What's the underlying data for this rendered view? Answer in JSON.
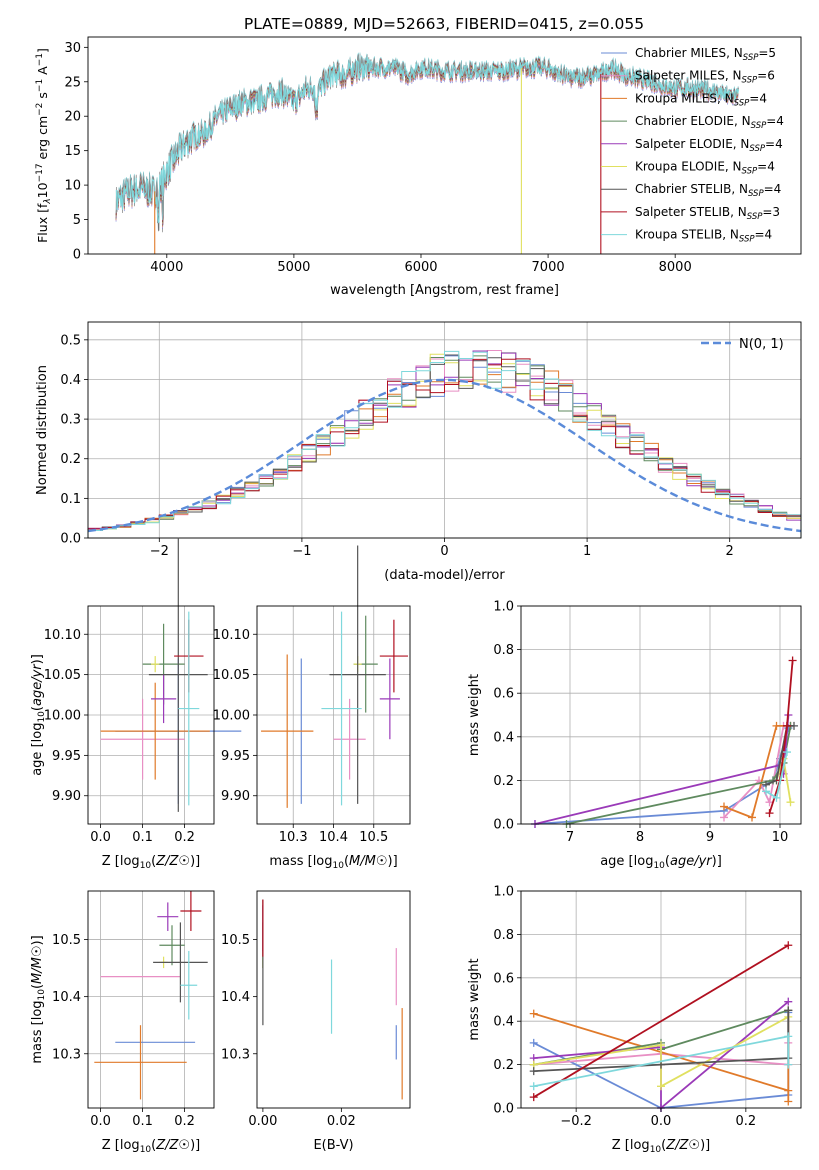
{
  "figure_title": "PLATE=0889, MJD=52663, FIBERID=0415, z=0.055",
  "colors": {
    "Chabrier MILES": "#6a8bd6",
    "Salpeter MILES": "#e88fc4",
    "Kroupa MILES": "#e07a2a",
    "Chabrier ELODIE": "#5f8a5f",
    "Salpeter ELODIE": "#9a3ab8",
    "Kroupa ELODIE": "#e0e060",
    "Chabrier STELIB": "#555555",
    "Salpeter STELIB": "#b01020",
    "Kroupa STELIB": "#7fd8dc",
    "normal": "#5b8bd9"
  },
  "chart_data": [
    {
      "id": "spectrum",
      "type": "line",
      "title": "PLATE=0889, MJD=52663, FIBERID=0415, z=0.055",
      "xlabel": "wavelength [Angstrom, rest frame]",
      "ylabel_parts": [
        "Flux [f",
        "λ",
        "10",
        "−17",
        " erg cm",
        "−2",
        " s",
        "−1",
        " A",
        "−1",
        "]"
      ],
      "xlim": [
        3380,
        8990
      ],
      "ylim": [
        0,
        31.5
      ],
      "xticks": [
        4000,
        5000,
        6000,
        7000,
        8000
      ],
      "yticks": [
        0,
        5,
        10,
        15,
        20,
        25,
        30
      ],
      "grid": false,
      "legend_loc": "right",
      "legend": [
        {
          "model": "Chabrier MILES",
          "n": 5
        },
        {
          "model": "Salpeter MILES",
          "n": 6
        },
        {
          "model": "Kroupa MILES",
          "n": 4
        },
        {
          "model": "Chabrier ELODIE",
          "n": 4
        },
        {
          "model": "Salpeter ELODIE",
          "n": 4
        },
        {
          "model": "Kroupa ELODIE",
          "n": 4
        },
        {
          "model": "Chabrier STELIB",
          "n": 4
        },
        {
          "model": "Salpeter STELIB",
          "n": 3
        },
        {
          "model": "Kroupa STELIB",
          "n": 4
        }
      ],
      "continuum": [
        [
          3600,
          7.5
        ],
        [
          3700,
          9
        ],
        [
          3800,
          9.5
        ],
        [
          3900,
          9
        ],
        [
          3950,
          10
        ],
        [
          4000,
          12
        ],
        [
          4100,
          15
        ],
        [
          4200,
          17
        ],
        [
          4300,
          17.5
        ],
        [
          4400,
          20
        ],
        [
          4500,
          21
        ],
        [
          4600,
          22
        ],
        [
          4700,
          22
        ],
        [
          4800,
          23
        ],
        [
          4900,
          23.5
        ],
        [
          5000,
          22
        ],
        [
          5100,
          24
        ],
        [
          5200,
          24
        ],
        [
          5300,
          26
        ],
        [
          5400,
          26
        ],
        [
          5500,
          27
        ],
        [
          5600,
          27
        ],
        [
          5700,
          27
        ],
        [
          5800,
          27
        ],
        [
          5900,
          26
        ],
        [
          6000,
          27
        ],
        [
          6200,
          26.5
        ],
        [
          6400,
          26.5
        ],
        [
          6600,
          26.5
        ],
        [
          6800,
          27
        ],
        [
          7000,
          27
        ],
        [
          7100,
          26
        ],
        [
          7200,
          25.5
        ],
        [
          7400,
          26
        ],
        [
          7500,
          27
        ],
        [
          7600,
          26
        ],
        [
          7800,
          25
        ],
        [
          8000,
          24
        ],
        [
          8200,
          24
        ],
        [
          8400,
          23
        ],
        [
          8500,
          23
        ]
      ],
      "spikes": [
        {
          "x": 3905,
          "ymin": 0,
          "series": "Kroupa MILES"
        },
        {
          "x": 6790,
          "ymin": 0,
          "series": "Kroupa ELODIE"
        },
        {
          "x": 7415,
          "ymin": 0,
          "series": "Salpeter STELIB"
        }
      ]
    },
    {
      "id": "residuals",
      "type": "step",
      "xlabel": "(data-model)/error",
      "ylabel": "Normed distribution",
      "xlim": [
        -2.5,
        2.5
      ],
      "ylim": [
        0,
        0.545
      ],
      "xticks": [
        -2,
        -1,
        0,
        1,
        2
      ],
      "yticks": [
        0.0,
        0.1,
        0.2,
        0.3,
        0.4,
        0.5
      ],
      "grid": true,
      "legend": "N(0, 1)",
      "legend_loc": "upper right",
      "bin_width": 0.1,
      "base_density": [
        0.02,
        0.024,
        0.028,
        0.034,
        0.041,
        0.048,
        0.057,
        0.067,
        0.078,
        0.091,
        0.105,
        0.12,
        0.137,
        0.155,
        0.175,
        0.196,
        0.218,
        0.241,
        0.264,
        0.287,
        0.309,
        0.33,
        0.349,
        0.366,
        0.38,
        0.39,
        0.397,
        0.399,
        0.397,
        0.39,
        0.38,
        0.366,
        0.349,
        0.33,
        0.309,
        0.287,
        0.264,
        0.241,
        0.218,
        0.196,
        0.175,
        0.155,
        0.137,
        0.12,
        0.105,
        0.091,
        0.078,
        0.067,
        0.057,
        0.048
      ]
    },
    {
      "id": "z-age",
      "type": "errorbar",
      "xlabel": "Z [log10(Z/Z☉)]",
      "ylabel": "age  [log10(age/yr)]",
      "xlim": [
        -0.03,
        0.27
      ],
      "ylim": [
        9.865,
        10.135
      ],
      "xticks": [
        0.0,
        0.1,
        0.2
      ],
      "yticks": [
        9.9,
        9.95,
        10.0,
        10.05,
        10.1
      ],
      "grid": true,
      "points": [
        {
          "series": "Chabrier MILES",
          "x": 0.185,
          "xerr": 0.15,
          "y": 9.98,
          "yerr": 0.09
        },
        {
          "series": "Salpeter MILES",
          "x": 0.1,
          "xerr": 0.1,
          "y": 9.97,
          "yerr": 0.05
        },
        {
          "series": "Kroupa MILES",
          "x": 0.13,
          "xerr": 0.13,
          "y": 9.98,
          "yerr": 0.06
        },
        {
          "series": "Chabrier ELODIE",
          "x": 0.15,
          "xerr": 0.05,
          "y": 10.063,
          "yerr": 0.05
        },
        {
          "series": "Salpeter ELODIE",
          "x": 0.15,
          "xerr": 0.03,
          "y": 10.02,
          "yerr": 0.03
        },
        {
          "series": "Kroupa ELODIE",
          "x": 0.13,
          "xerr": 0.01,
          "y": 10.063,
          "yerr": 0.01
        },
        {
          "series": "Chabrier STELIB",
          "x": 0.185,
          "xerr": 0.07,
          "y": 10.05,
          "yerr": 0.17
        },
        {
          "series": "Salpeter STELIB",
          "x": 0.21,
          "xerr": 0.035,
          "y": 10.073,
          "yerr": 0.045
        },
        {
          "series": "Kroupa STELIB",
          "x": 0.21,
          "xerr": 0.025,
          "y": 10.008,
          "yerr": 0.12
        }
      ]
    },
    {
      "id": "mass-age",
      "type": "errorbar",
      "xlabel": "mass [log10(M/M☉)]",
      "ylabel": "",
      "xlim": [
        10.21,
        10.59
      ],
      "ylim": [
        9.865,
        10.135
      ],
      "xticks": [
        10.3,
        10.4,
        10.5
      ],
      "yticks": [
        9.9,
        9.95,
        10.0,
        10.05,
        10.1
      ],
      "grid": true,
      "points": [
        {
          "series": "Chabrier MILES",
          "x": 10.32,
          "xerr": 0.0,
          "y": 9.98,
          "yerr": 0.09
        },
        {
          "series": "Salpeter MILES",
          "x": 10.44,
          "xerr": 0.04,
          "y": 9.97,
          "yerr": 0.05
        },
        {
          "series": "Kroupa MILES",
          "x": 10.285,
          "xerr": 0.065,
          "y": 9.98,
          "yerr": 0.095
        },
        {
          "series": "Chabrier ELODIE",
          "x": 10.48,
          "xerr": 0.03,
          "y": 10.063,
          "yerr": 0.06
        },
        {
          "series": "Salpeter ELODIE",
          "x": 10.54,
          "xerr": 0.025,
          "y": 10.02,
          "yerr": 0.05
        },
        {
          "series": "Kroupa ELODIE",
          "x": 10.46,
          "xerr": 0.01,
          "y": 10.063,
          "yerr": 0.01
        },
        {
          "series": "Chabrier STELIB",
          "x": 10.46,
          "xerr": 0.07,
          "y": 10.05,
          "yerr": 0.16
        },
        {
          "series": "Salpeter STELIB",
          "x": 10.55,
          "xerr": 0.035,
          "y": 10.073,
          "yerr": 0.045
        },
        {
          "series": "Kroupa STELIB",
          "x": 10.42,
          "xerr": 0.05,
          "y": 10.008,
          "yerr": 0.12
        }
      ]
    },
    {
      "id": "age-weight",
      "type": "line",
      "xlabel": "age  [log10(age/yr)]",
      "ylabel": "mass weight",
      "xlim": [
        6.3,
        10.3
      ],
      "ylim": [
        0,
        1.0
      ],
      "xticks": [
        7,
        8,
        9,
        10
      ],
      "yticks": [
        0.0,
        0.2,
        0.4,
        0.6,
        0.8,
        1.0
      ],
      "grid": true,
      "series": [
        {
          "name": "Chabrier MILES",
          "x": [
            6.5,
            9.2,
            9.9,
            10.0,
            10.12
          ],
          "y": [
            0.0,
            0.06,
            0.2,
            0.3,
            0.44
          ]
        },
        {
          "name": "Salpeter MILES",
          "x": [
            9.2,
            9.7,
            9.85,
            10.05
          ],
          "y": [
            0.03,
            0.2,
            0.1,
            0.45
          ]
        },
        {
          "name": "Kroupa MILES",
          "x": [
            9.2,
            9.6,
            9.95,
            10.15
          ],
          "y": [
            0.08,
            0.03,
            0.45,
            0.45
          ]
        },
        {
          "name": "Chabrier ELODIE",
          "x": [
            6.95,
            9.9,
            10.05,
            10.15
          ],
          "y": [
            0.0,
            0.2,
            0.28,
            0.45
          ]
        },
        {
          "name": "Salpeter ELODIE",
          "x": [
            6.5,
            10.0,
            10.05,
            10.12
          ],
          "y": [
            0.0,
            0.27,
            0.23,
            0.5
          ]
        },
        {
          "name": "Kroupa ELODIE",
          "x": [
            9.95,
            10.05,
            10.15
          ],
          "y": [
            0.2,
            0.3,
            0.1
          ]
        },
        {
          "name": "Chabrier STELIB",
          "x": [
            9.8,
            9.95,
            10.1,
            10.2
          ],
          "y": [
            0.18,
            0.2,
            0.45,
            0.45
          ]
        },
        {
          "name": "Salpeter STELIB",
          "x": [
            9.85,
            10.0,
            10.1,
            10.18
          ],
          "y": [
            0.05,
            0.2,
            0.45,
            0.75
          ]
        },
        {
          "name": "Kroupa STELIB",
          "x": [
            9.8,
            9.95,
            10.1
          ],
          "y": [
            0.15,
            0.12,
            0.33
          ]
        }
      ]
    },
    {
      "id": "z-mass",
      "type": "errorbar",
      "xlabel": "Z [log10(Z/Z☉)]",
      "ylabel": "mass [log10(M/M☉)]",
      "xlim": [
        -0.03,
        0.27
      ],
      "ylim": [
        10.205,
        10.585
      ],
      "xticks": [
        0.0,
        0.1,
        0.2
      ],
      "yticks": [
        10.3,
        10.4,
        10.5
      ],
      "grid": true,
      "points": [
        {
          "series": "Chabrier MILES",
          "x": 0.13,
          "xerr": 0.095,
          "y": 10.32,
          "yerr": 0.0
        },
        {
          "series": "Salpeter MILES",
          "x": 0.095,
          "xerr": 0.095,
          "y": 10.435,
          "yerr": 0.0
        },
        {
          "series": "Kroupa MILES",
          "x": 0.095,
          "xerr": 0.11,
          "y": 10.285,
          "yerr": 0.065
        },
        {
          "series": "Chabrier ELODIE",
          "x": 0.17,
          "xerr": 0.03,
          "y": 10.49,
          "yerr": 0.035
        },
        {
          "series": "Salpeter ELODIE",
          "x": 0.16,
          "xerr": 0.025,
          "y": 10.54,
          "yerr": 0.025
        },
        {
          "series": "Kroupa ELODIE",
          "x": 0.15,
          "xerr": 0.01,
          "y": 10.46,
          "yerr": 0.01
        },
        {
          "series": "Chabrier STELIB",
          "x": 0.19,
          "xerr": 0.065,
          "y": 10.46,
          "yerr": 0.07
        },
        {
          "series": "Salpeter STELIB",
          "x": 0.215,
          "xerr": 0.025,
          "y": 10.55,
          "yerr": 0.035
        },
        {
          "series": "Kroupa STELIB",
          "x": 0.21,
          "xerr": 0.02,
          "y": 10.42,
          "yerr": 0.06
        }
      ]
    },
    {
      "id": "ebv-mass",
      "type": "errorbar",
      "xlabel": "E(B-V)",
      "ylabel": "",
      "xlim": [
        -0.0015,
        0.0375
      ],
      "ylim": [
        10.205,
        10.585
      ],
      "xticks": [
        0.0,
        0.02
      ],
      "yticks": [
        10.3,
        10.4,
        10.5
      ],
      "grid": false,
      "points": [
        {
          "series": "Chabrier MILES",
          "x": 0.034,
          "xerr": 0,
          "y": 10.32,
          "yerr": 0.03
        },
        {
          "series": "Salpeter MILES",
          "x": 0.034,
          "xerr": 0,
          "y": 10.435,
          "yerr": 0.05
        },
        {
          "series": "Kroupa MILES",
          "x": 0.0355,
          "xerr": 0,
          "y": 10.3,
          "yerr": 0.08
        },
        {
          "series": "Chabrier ELODIE",
          "x": 0.0,
          "xerr": 0,
          "y": 10.49,
          "yerr": 0.04
        },
        {
          "series": "Salpeter ELODIE",
          "x": 0.0,
          "xerr": 0,
          "y": 10.52,
          "yerr": 0.04
        },
        {
          "series": "Kroupa ELODIE",
          "x": 0.0,
          "xerr": 0,
          "y": 10.46,
          "yerr": 0.01
        },
        {
          "series": "Chabrier STELIB",
          "x": 0.0,
          "xerr": 0,
          "y": 10.46,
          "yerr": 0.11
        },
        {
          "series": "Salpeter STELIB",
          "x": 0.0,
          "xerr": 0,
          "y": 10.52,
          "yerr": 0.05
        },
        {
          "series": "Kroupa STELIB",
          "x": 0.0175,
          "xerr": 0,
          "y": 10.4,
          "yerr": 0.065
        }
      ]
    },
    {
      "id": "z-weight",
      "type": "line",
      "xlabel": "Z [log10(Z/Z☉)]",
      "ylabel": "mass weight",
      "xlim": [
        -0.33,
        0.33
      ],
      "ylim": [
        0,
        1.0
      ],
      "xticks": [
        -0.2,
        0.0,
        0.2
      ],
      "yticks": [
        0.0,
        0.2,
        0.4,
        0.6,
        0.8,
        1.0
      ],
      "grid": true,
      "series": [
        {
          "name": "Chabrier MILES",
          "x": [
            -0.3,
            0.0,
            0.3,
            0.3
          ],
          "y": [
            0.3,
            0.0,
            0.06,
            0.44
          ]
        },
        {
          "name": "Salpeter MILES",
          "x": [
            -0.3,
            0.0,
            0.3,
            0.3
          ],
          "y": [
            0.2,
            0.25,
            0.2,
            0.3
          ]
        },
        {
          "name": "Kroupa MILES",
          "x": [
            -0.3,
            0.3,
            0.3,
            0.3
          ],
          "y": [
            0.435,
            0.08,
            0.03,
            0.45
          ]
        },
        {
          "name": "Chabrier ELODIE",
          "x": [
            -0.3,
            0.0,
            0.0,
            0.3
          ],
          "y": [
            0.2,
            0.3,
            0.27,
            0.45
          ]
        },
        {
          "name": "Salpeter ELODIE",
          "x": [
            -0.3,
            0.0,
            0.0,
            0.3
          ],
          "y": [
            0.23,
            0.28,
            0.0,
            0.49
          ]
        },
        {
          "name": "Kroupa ELODIE",
          "x": [
            -0.3,
            0.0,
            0.0,
            0.3
          ],
          "y": [
            0.2,
            0.29,
            0.1,
            0.42
          ]
        },
        {
          "name": "Chabrier STELIB",
          "x": [
            -0.3,
            0.0,
            0.3,
            0.3
          ],
          "y": [
            0.17,
            0.2,
            0.23,
            0.45
          ]
        },
        {
          "name": "Salpeter STELIB",
          "x": [
            -0.3,
            0.3
          ],
          "y": [
            0.05,
            0.75
          ]
        },
        {
          "name": "Kroupa STELIB",
          "x": [
            -0.3,
            0.3,
            0.3
          ],
          "y": [
            0.1,
            0.33,
            0.2
          ]
        }
      ]
    }
  ]
}
